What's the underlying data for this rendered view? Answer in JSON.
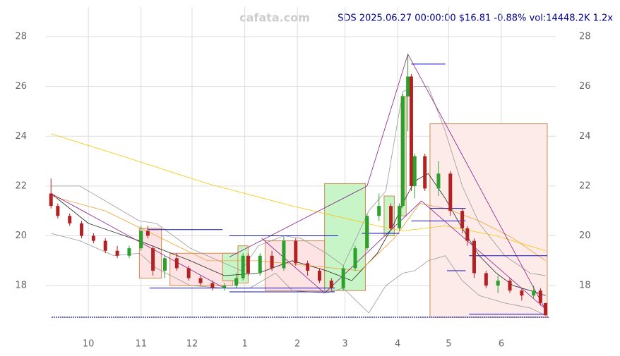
{
  "chart_data": {
    "type": "candlestick",
    "watermark": "cafata.com",
    "title": "SDS 2025.06.27 00:00:00 $16.81 -0.88% vol:14448.2K 1.2x",
    "xlim": [
      5,
      305
    ],
    "xticks": [
      {
        "value": 30,
        "label": "10"
      },
      {
        "value": 61,
        "label": "11"
      },
      {
        "value": 91,
        "label": "12"
      },
      {
        "value": 122,
        "label": "1"
      },
      {
        "value": 153,
        "label": "2"
      },
      {
        "value": 181,
        "label": "3"
      },
      {
        "value": 212,
        "label": "4"
      },
      {
        "value": 242,
        "label": "5"
      },
      {
        "value": 273,
        "label": "6"
      }
    ],
    "ylim": [
      16.73,
      29.19
    ],
    "yticks": [
      18,
      20,
      22,
      24,
      26,
      28
    ],
    "grid": true,
    "up_color": "#2ca02c",
    "down_color": "#b22222",
    "candles": {
      "x": [
        8,
        12,
        19,
        26,
        33,
        40,
        47,
        54,
        61,
        65,
        68,
        75,
        82,
        89,
        96,
        103,
        110,
        117,
        121,
        124,
        131,
        138,
        145,
        152,
        159,
        166,
        173,
        180,
        187,
        194,
        201,
        208,
        213,
        215,
        218,
        220,
        222,
        228,
        236,
        243,
        250,
        253,
        257,
        264,
        271,
        278,
        285,
        292,
        296,
        299
      ],
      "open": [
        21.7,
        21.2,
        20.8,
        20.5,
        20.0,
        19.8,
        19.4,
        19.2,
        19.5,
        20.2,
        19.5,
        18.6,
        19.1,
        18.7,
        18.3,
        18.1,
        17.9,
        18.0,
        18.3,
        19.2,
        18.5,
        19.2,
        18.7,
        19.8,
        18.9,
        18.6,
        18.2,
        17.9,
        18.7,
        19.5,
        20.8,
        21.2,
        20.3,
        21.2,
        25.6,
        26.4,
        22.0,
        23.2,
        21.9,
        22.5,
        21.0,
        20.3,
        19.8,
        18.5,
        18.0,
        18.2,
        17.8,
        17.6,
        17.8,
        17.3
      ],
      "high": [
        22.3,
        21.3,
        20.9,
        20.6,
        20.1,
        19.9,
        19.6,
        19.6,
        20.4,
        20.4,
        19.6,
        19.2,
        19.3,
        18.8,
        18.4,
        18.2,
        18.1,
        18.5,
        19.3,
        19.3,
        19.3,
        19.4,
        20.0,
        19.9,
        19.0,
        18.7,
        18.3,
        18.8,
        19.6,
        20.9,
        21.7,
        21.3,
        21.3,
        25.7,
        27.3,
        26.5,
        23.3,
        23.3,
        23.0,
        22.6,
        21.1,
        20.4,
        19.9,
        18.6,
        18.4,
        18.3,
        17.9,
        18.0,
        17.9,
        17.3
      ],
      "low": [
        21.1,
        20.7,
        20.4,
        19.9,
        19.7,
        19.3,
        19.1,
        19.1,
        19.4,
        19.9,
        18.4,
        18.3,
        18.6,
        18.2,
        18.0,
        17.8,
        17.8,
        17.9,
        18.2,
        18.4,
        18.4,
        18.6,
        18.6,
        18.8,
        18.4,
        18.1,
        17.8,
        17.8,
        18.6,
        19.4,
        20.6,
        20.2,
        20.2,
        21.1,
        24.2,
        21.8,
        21.5,
        21.8,
        21.6,
        20.8,
        20.1,
        19.6,
        18.3,
        17.9,
        17.7,
        17.7,
        17.4,
        17.5,
        17.2,
        16.8
      ],
      "close": [
        21.2,
        20.8,
        20.5,
        20.0,
        19.8,
        19.4,
        19.2,
        19.5,
        20.2,
        20.0,
        18.6,
        19.1,
        18.7,
        18.3,
        18.1,
        17.9,
        18.0,
        18.3,
        19.2,
        18.5,
        19.2,
        18.7,
        19.8,
        18.9,
        18.6,
        18.2,
        17.9,
        18.7,
        19.5,
        20.8,
        21.2,
        20.3,
        21.2,
        25.6,
        26.4,
        22.0,
        23.2,
        21.9,
        22.5,
        21.0,
        20.3,
        19.8,
        18.5,
        18.0,
        18.2,
        17.8,
        17.6,
        17.8,
        17.3,
        16.81
      ]
    },
    "boxes": [
      {
        "x": [
          60,
          73
        ],
        "y": [
          18.3,
          20.3
        ],
        "fill": "#fde3e3",
        "stroke": "#d08850"
      },
      {
        "x": [
          78,
          115
        ],
        "y": [
          18.0,
          19.3
        ],
        "fill": "#fde3e3",
        "stroke": "#d08850"
      },
      {
        "x": [
          109,
          118
        ],
        "y": [
          18.2,
          19.3
        ],
        "fill": "#c8f5c8",
        "stroke": "#d08850"
      },
      {
        "x": [
          118,
          124
        ],
        "y": [
          18.1,
          19.6
        ],
        "fill": "#c8f5c8",
        "stroke": "#d08850"
      },
      {
        "x": [
          134,
          169
        ],
        "y": [
          17.8,
          19.8
        ],
        "fill": "#fde3e3",
        "stroke": "#d08850"
      },
      {
        "x": [
          169,
          193
        ],
        "y": [
          17.8,
          22.1
        ],
        "fill": "#c8f5c8",
        "stroke": "#d08850"
      },
      {
        "x": [
          204,
          210
        ],
        "y": [
          20.0,
          21.6
        ],
        "fill": "#c8f5c8",
        "stroke": "#d08850"
      },
      {
        "x": [
          214,
          217
        ],
        "y": [
          20.8,
          25.6
        ],
        "fill": "#c8f5c8",
        "stroke": "#d08850"
      },
      {
        "x": [
          231,
          300
        ],
        "y": [
          16.73,
          24.5
        ],
        "fill": "#fdebea",
        "stroke": "#d08850"
      }
    ],
    "levels": [
      {
        "x": [
          65,
          109
        ],
        "y": 20.25
      },
      {
        "x": [
          113,
          177
        ],
        "y": 20.0
      },
      {
        "x": [
          66,
          175
        ],
        "y": 17.9
      },
      {
        "x": [
          113,
          175
        ],
        "y": 17.75
      },
      {
        "x": [
          191,
          213
        ],
        "y": 20.1
      },
      {
        "x": [
          220,
          240
        ],
        "y": 26.9
      },
      {
        "x": [
          220,
          252
        ],
        "y": 20.6
      },
      {
        "x": [
          231,
          252
        ],
        "y": 21.1
      },
      {
        "x": [
          241,
          252
        ],
        "y": 18.6
      },
      {
        "x": [
          254,
          300
        ],
        "y": 19.2
      },
      {
        "x": [
          254,
          300
        ],
        "y": 16.85
      }
    ],
    "level_color": "#1010c0",
    "lines": [
      {
        "color": "#222222",
        "x": [
          8,
          30,
          60,
          90,
          110,
          130,
          150,
          170,
          185,
          200,
          210,
          215,
          222,
          230,
          240,
          250,
          260,
          270,
          280,
          290,
          299
        ],
        "values": [
          21.7,
          20.5,
          19.8,
          19.0,
          18.4,
          18.5,
          19.0,
          18.6,
          18.2,
          19.3,
          20.5,
          21.3,
          22.2,
          22.5,
          21.5,
          20.3,
          19.2,
          18.5,
          18.0,
          17.8,
          17.6
        ]
      },
      {
        "color": "#999999",
        "x": [
          8,
          25,
          45,
          60,
          70,
          90,
          110,
          120,
          130,
          145,
          155,
          170,
          180,
          195,
          205,
          215,
          222,
          230,
          240,
          250,
          260,
          275,
          290,
          299
        ],
        "values": [
          22.0,
          22.0,
          21.2,
          20.6,
          20.5,
          19.5,
          18.9,
          18.6,
          19.6,
          20.0,
          19.9,
          19.3,
          18.8,
          21.0,
          21.8,
          25.8,
          26.0,
          26.0,
          24.2,
          22.0,
          20.5,
          19.2,
          18.5,
          18.4
        ]
      },
      {
        "color": "#999999",
        "x": [
          8,
          25,
          45,
          60,
          70,
          90,
          110,
          125,
          140,
          150,
          170,
          180,
          195,
          205,
          215,
          222,
          230,
          240,
          250,
          260,
          275,
          290,
          299
        ],
        "values": [
          20.1,
          19.8,
          19.2,
          19.3,
          18.7,
          18.0,
          17.9,
          17.9,
          18.5,
          17.8,
          17.7,
          17.9,
          16.9,
          18.0,
          18.5,
          18.6,
          19.0,
          19.2,
          18.2,
          17.6,
          17.3,
          17.1,
          16.8
        ]
      },
      {
        "color": "#f5c800",
        "x": [
          8,
          50,
          100,
          150,
          200,
          215,
          240,
          270,
          299
        ],
        "values": [
          24.1,
          23.2,
          22.1,
          21.2,
          20.4,
          20.2,
          20.4,
          20.0,
          19.4
        ]
      },
      {
        "color": "#f0a030",
        "x": [
          8,
          40,
          70,
          100,
          130,
          160,
          190,
          210,
          225,
          240,
          260,
          280,
          299
        ],
        "values": [
          21.6,
          21.0,
          20.0,
          19.0,
          19.0,
          18.8,
          18.6,
          19.9,
          21.3,
          21.1,
          20.6,
          19.9,
          19.0
        ]
      },
      {
        "color": "#8a1a8a",
        "x": [
          8,
          110
        ],
        "values": [
          21.7,
          17.9
        ]
      },
      {
        "color": "#8a1a8a",
        "x": [
          113,
          194,
          218,
          300
        ],
        "values": [
          19.15,
          22.0,
          27.3,
          16.9
        ]
      },
      {
        "color": "#8a1a8a",
        "x": [
          132,
          169,
          226,
          300
        ],
        "values": [
          19.9,
          17.7,
          21.4,
          17.0
        ]
      }
    ]
  }
}
